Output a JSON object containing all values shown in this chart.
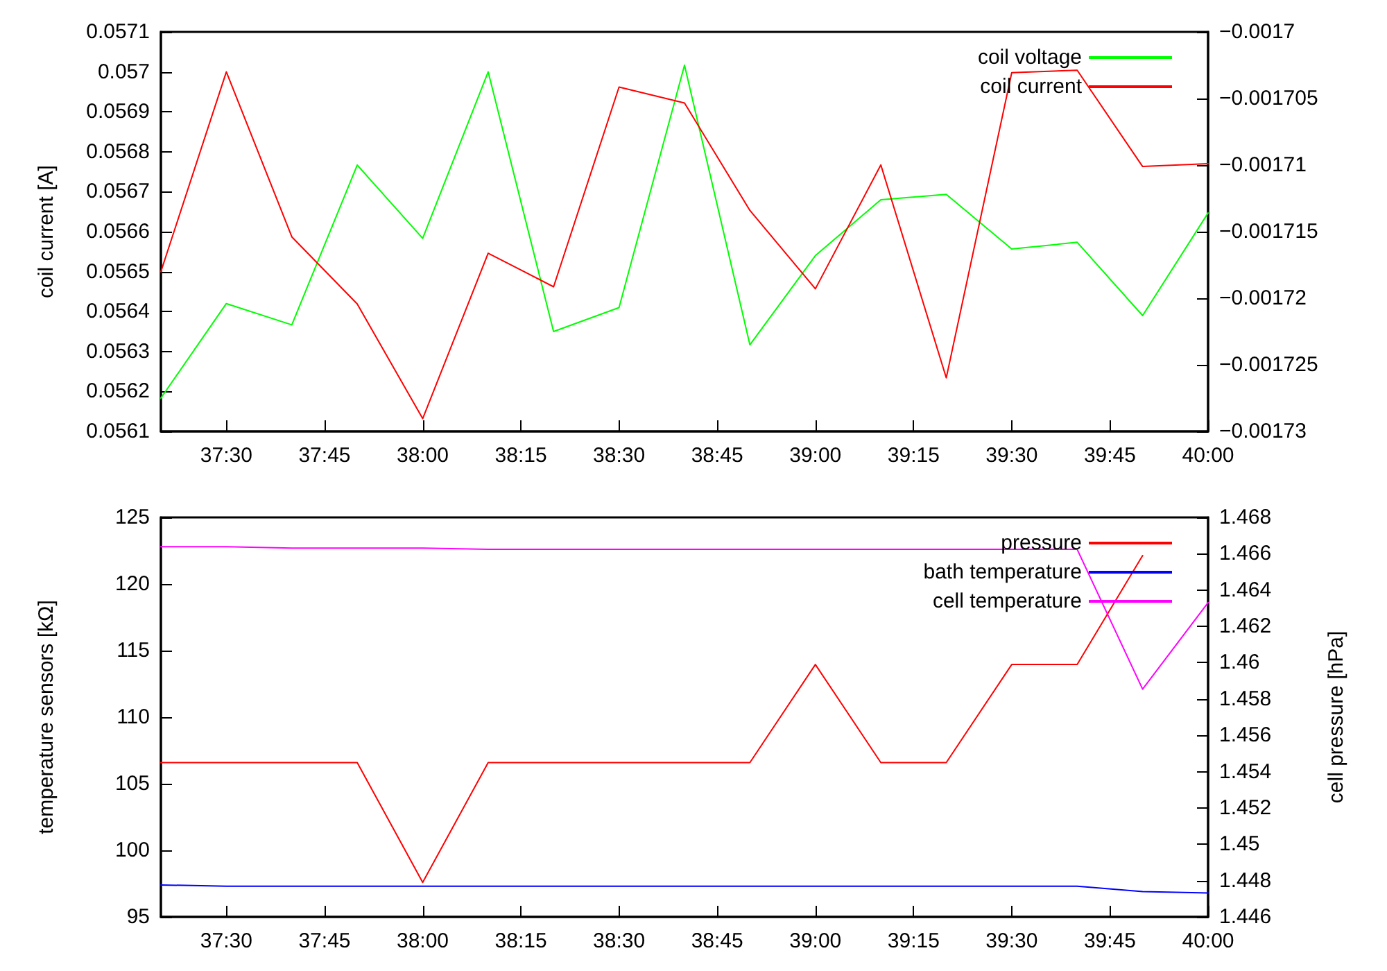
{
  "chart_data": [
    {
      "type": "line",
      "ylabel": "coil current [A]",
      "legend": "top right",
      "grid": false,
      "x": [
        37.3333,
        37.5,
        37.6667,
        37.8333,
        38,
        38.1667,
        38.3333,
        38.5,
        38.6667,
        38.8333,
        39,
        39.1667,
        39.3333,
        39.5,
        39.6667,
        39.8333,
        40
      ],
      "xlim": [
        37.3333,
        40
      ],
      "xticks": [
        {
          "value": 37.5,
          "label": "37:30"
        },
        {
          "value": 37.75,
          "label": "37:45"
        },
        {
          "value": 38,
          "label": "38:00"
        },
        {
          "value": 38.25,
          "label": "38:15"
        },
        {
          "value": 38.5,
          "label": "38:30"
        },
        {
          "value": 38.75,
          "label": "38:45"
        },
        {
          "value": 39,
          "label": "39:00"
        },
        {
          "value": 39.25,
          "label": "39:15"
        },
        {
          "value": 39.5,
          "label": "39:30"
        },
        {
          "value": 39.75,
          "label": "39:45"
        },
        {
          "value": 40,
          "label": "40:00"
        }
      ],
      "ylim": [
        0.0561,
        0.0571
      ],
      "yticks": [
        0.0561,
        0.0562,
        0.0563,
        0.0564,
        0.0565,
        0.0566,
        0.0567,
        0.0568,
        0.0569,
        0.057,
        0.0571
      ],
      "y2lim": [
        -0.00173,
        -0.0017
      ],
      "y2ticks": [
        {
          "value": -0.00173,
          "label": "−0.00173"
        },
        {
          "value": -0.001725,
          "label": "−0.001725"
        },
        {
          "value": -0.00172,
          "label": "−0.00172"
        },
        {
          "value": -0.001715,
          "label": "−0.001715"
        },
        {
          "value": -0.00171,
          "label": "−0.00171"
        },
        {
          "value": -0.001705,
          "label": "−0.001705"
        },
        {
          "value": -0.0017,
          "label": "−0.0017"
        }
      ],
      "series": [
        {
          "name": "coil voltage",
          "color": "#00ff00",
          "axis": "y2",
          "values": [
            -0.0017275,
            -0.0017204,
            -0.001722,
            -0.00171,
            -0.0017155,
            -0.001703,
            -0.0017225,
            -0.0017207,
            -0.0017025,
            -0.0017235,
            -0.0017168,
            -0.0017126,
            -0.0017122,
            -0.0017163,
            -0.0017158,
            -0.0017213,
            -0.0017136
          ]
        },
        {
          "name": "coil current",
          "color": "#ff0000",
          "axis": "y",
          "values": [
            0.0565,
            0.057,
            0.056587,
            0.056419,
            0.056132,
            0.056546,
            0.056462,
            0.056962,
            0.056922,
            0.056653,
            0.056457,
            0.056767,
            0.056234,
            0.056998,
            0.057004,
            0.056763,
            0.05677
          ]
        }
      ]
    },
    {
      "type": "line",
      "ylabel": "temperature sensors [kΩ]",
      "y2label": "cell pressure [hPa]",
      "legend": "top right",
      "grid": false,
      "x": [
        37.3333,
        37.5,
        37.6667,
        37.8333,
        38,
        38.1667,
        38.3333,
        38.5,
        38.6667,
        38.8333,
        39,
        39.1667,
        39.3333,
        39.5,
        39.6667,
        39.8333,
        40
      ],
      "xlim": [
        37.3333,
        40
      ],
      "xticks": [
        {
          "value": 37.5,
          "label": "37:30"
        },
        {
          "value": 37.75,
          "label": "37:45"
        },
        {
          "value": 38,
          "label": "38:00"
        },
        {
          "value": 38.25,
          "label": "38:15"
        },
        {
          "value": 38.5,
          "label": "38:30"
        },
        {
          "value": 38.75,
          "label": "38:45"
        },
        {
          "value": 39,
          "label": "39:00"
        },
        {
          "value": 39.25,
          "label": "39:15"
        },
        {
          "value": 39.5,
          "label": "39:30"
        },
        {
          "value": 39.75,
          "label": "39:45"
        },
        {
          "value": 40,
          "label": "40:00"
        }
      ],
      "ylim": [
        95,
        125
      ],
      "yticks": [
        95,
        100,
        105,
        110,
        115,
        120,
        125
      ],
      "y2lim": [
        1.446,
        1.468
      ],
      "y2ticks": [
        1.446,
        1.448,
        1.45,
        1.452,
        1.454,
        1.456,
        1.458,
        1.46,
        1.462,
        1.464,
        1.466,
        1.468
      ],
      "series": [
        {
          "name": "pressure",
          "color": "#ff0000",
          "axis": "y2",
          "values": [
            1.4545,
            1.4545,
            1.4545,
            1.4545,
            1.4479,
            1.4545,
            1.4545,
            1.4545,
            1.4545,
            1.4545,
            1.4599,
            1.4545,
            1.4545,
            1.4599,
            1.4599,
            1.4659,
            null
          ]
        },
        {
          "name": "bath temperature",
          "color": "#0000ff",
          "axis": "y",
          "values": [
            97.4,
            97.3,
            97.3,
            97.3,
            97.3,
            97.3,
            97.3,
            97.3,
            97.3,
            97.3,
            97.3,
            97.3,
            97.3,
            97.3,
            97.3,
            96.9,
            96.8
          ]
        },
        {
          "name": "cell temperature",
          "color": "#ff00ff",
          "axis": "y",
          "values": [
            122.8,
            122.8,
            122.7,
            122.7,
            122.7,
            122.6,
            122.6,
            122.6,
            122.6,
            122.6,
            122.6,
            122.6,
            122.6,
            122.6,
            122.6,
            112.1,
            118.6
          ]
        }
      ]
    }
  ]
}
